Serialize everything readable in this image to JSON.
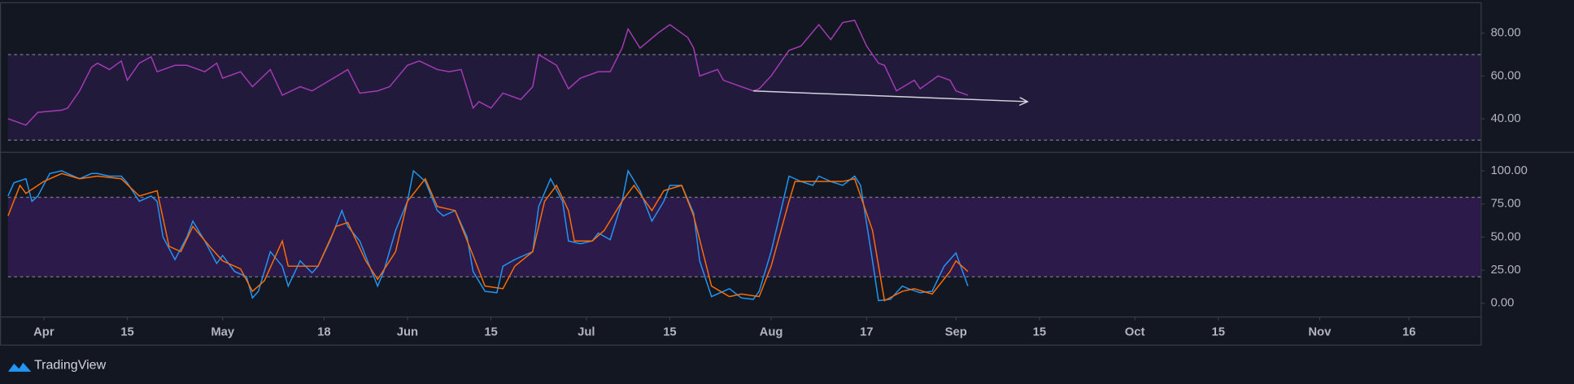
{
  "chart_data": [
    {
      "type": "line",
      "xlim": [
        -6,
        241
      ],
      "ylim": [
        25,
        94
      ],
      "yticks": [
        {
          "value": 40,
          "label": "40.00"
        },
        {
          "value": 60,
          "label": "60.00"
        },
        {
          "value": 80,
          "label": "80.00"
        }
      ],
      "band": [
        30,
        70
      ],
      "band_color": "#211a3a",
      "series": [
        {
          "color": "#a43ab5",
          "x": [
            -6,
            -4,
            -3,
            -1,
            3,
            4,
            6,
            8,
            9,
            11,
            13,
            14,
            16,
            18,
            19,
            22,
            24,
            27,
            29,
            30,
            33,
            35,
            38,
            40,
            43,
            45,
            48,
            51,
            53,
            56,
            58,
            61,
            63,
            66,
            68,
            70,
            72,
            73,
            75,
            77,
            80,
            82,
            83,
            86,
            88,
            90,
            93,
            95,
            97,
            98,
            100,
            103,
            105,
            108,
            109,
            110,
            113,
            114,
            117,
            119,
            120,
            122,
            125,
            127,
            130,
            132,
            134,
            136,
            138,
            140,
            141,
            143,
            146,
            147,
            150,
            152,
            153,
            155
          ],
          "values": [
            40,
            38,
            37,
            43,
            44,
            45,
            53,
            64,
            66,
            63,
            67,
            58,
            66,
            69,
            62,
            65,
            65,
            62,
            66,
            59,
            62,
            55,
            63,
            51,
            55,
            53,
            58,
            63,
            52,
            53,
            55,
            65,
            67,
            63,
            62,
            63,
            45,
            48,
            45,
            52,
            49,
            55,
            70,
            65,
            54,
            59,
            62,
            62,
            73,
            82,
            73,
            80,
            84,
            78,
            73,
            60,
            63,
            58,
            55,
            53,
            54,
            60,
            72,
            74,
            84,
            77,
            85,
            86,
            74,
            66,
            65,
            53,
            58,
            54,
            60,
            58,
            53,
            51
          ]
        }
      ],
      "annotations": [
        {
          "x": [
            119,
            165
          ],
          "y": [
            53,
            48
          ],
          "color": "#d1d4dc"
        }
      ]
    },
    {
      "type": "line",
      "xlim": [
        -6,
        241
      ],
      "ylim": [
        -10,
        113.6
      ],
      "yticks": [
        {
          "value": 0,
          "label": "0.00"
        },
        {
          "value": 25,
          "label": "25.00"
        },
        {
          "value": 50,
          "label": "50.00"
        },
        {
          "value": 75,
          "label": "75.00"
        },
        {
          "value": 100,
          "label": "100.00"
        }
      ],
      "band": [
        20,
        80
      ],
      "band_color": "#2c1a4a",
      "xticks": [
        {
          "value": 0,
          "label": "Apr"
        },
        {
          "value": 14,
          "label": "15"
        },
        {
          "value": 30,
          "label": "May"
        },
        {
          "value": 47,
          "label": "18"
        },
        {
          "value": 61,
          "label": "Jun"
        },
        {
          "value": 75,
          "label": "15"
        },
        {
          "value": 91,
          "label": "Jul"
        },
        {
          "value": 105,
          "label": "15"
        },
        {
          "value": 122,
          "label": "Aug"
        },
        {
          "value": 138,
          "label": "17"
        },
        {
          "value": 153,
          "label": "Sep"
        },
        {
          "value": 167,
          "label": "15"
        },
        {
          "value": 183,
          "label": "Oct"
        },
        {
          "value": 197,
          "label": "15"
        },
        {
          "value": 214,
          "label": "Nov"
        },
        {
          "value": 229,
          "label": "16"
        }
      ],
      "series": [
        {
          "color": "#2196f3",
          "x": [
            -6,
            -5,
            -3,
            -2,
            -1,
            1,
            3,
            4,
            6,
            8,
            9,
            11,
            13,
            14,
            16,
            18,
            19,
            20,
            22,
            24,
            25,
            27,
            29,
            30,
            32,
            34,
            35,
            36,
            38,
            40,
            41,
            43,
            45,
            46,
            48,
            50,
            51,
            53,
            55,
            56,
            57,
            59,
            61,
            62,
            64,
            66,
            67,
            69,
            71,
            72,
            74,
            76,
            77,
            79,
            82,
            83,
            85,
            87,
            88,
            90,
            92,
            93,
            95,
            97,
            98,
            100,
            102,
            104,
            105,
            107,
            109,
            110,
            112,
            114,
            115,
            117,
            119,
            120,
            122,
            124,
            125,
            127,
            129,
            130,
            132,
            134,
            136,
            137,
            139,
            140,
            142,
            144,
            145,
            147,
            149,
            151,
            153,
            155
          ],
          "values": [
            81,
            91,
            94,
            77,
            81,
            98,
            100,
            98,
            94,
            98,
            98,
            96,
            96,
            91,
            77,
            81,
            77,
            50,
            33,
            50,
            62,
            47,
            30,
            36,
            24,
            20,
            4,
            9,
            39,
            28,
            13,
            32,
            23,
            28,
            47,
            70,
            58,
            47,
            24,
            13,
            24,
            55,
            77,
            100,
            92,
            70,
            66,
            70,
            50,
            24,
            9,
            8,
            28,
            33,
            39,
            73,
            94,
            77,
            47,
            45,
            47,
            53,
            48,
            77,
            100,
            85,
            62,
            77,
            89,
            89,
            68,
            32,
            5,
            9,
            11,
            4,
            3,
            9,
            39,
            77,
            96,
            92,
            89,
            96,
            92,
            89,
            96,
            89,
            32,
            2,
            3,
            13,
            11,
            8,
            9,
            28,
            38,
            13
          ]
        },
        {
          "color": "#ff6d00",
          "x": [
            -6,
            -4,
            -3,
            0,
            3,
            6,
            9,
            13,
            16,
            19,
            21,
            23,
            25,
            28,
            30,
            33,
            35,
            37,
            40,
            41,
            44,
            46,
            49,
            51,
            54,
            56,
            59,
            61,
            64,
            66,
            69,
            72,
            74,
            77,
            79,
            82,
            84,
            86,
            88,
            89,
            92,
            94,
            97,
            99,
            102,
            104,
            107,
            109,
            112,
            115,
            117,
            120,
            122,
            125,
            126,
            129,
            131,
            134,
            136,
            139,
            141,
            144,
            146,
            149,
            152,
            153,
            155
          ],
          "values": [
            66,
            89,
            83,
            92,
            98,
            94,
            96,
            94,
            81,
            85,
            43,
            39,
            58,
            42,
            32,
            26,
            9,
            17,
            47,
            28,
            28,
            28,
            58,
            61,
            32,
            18,
            39,
            77,
            94,
            73,
            70,
            36,
            13,
            11,
            28,
            39,
            77,
            89,
            70,
            47,
            47,
            55,
            77,
            89,
            70,
            85,
            89,
            66,
            13,
            5,
            7,
            5,
            28,
            77,
            92,
            92,
            92,
            92,
            94,
            55,
            2,
            9,
            11,
            7,
            24,
            32,
            24
          ]
        }
      ]
    }
  ],
  "watermark": "TradingView"
}
